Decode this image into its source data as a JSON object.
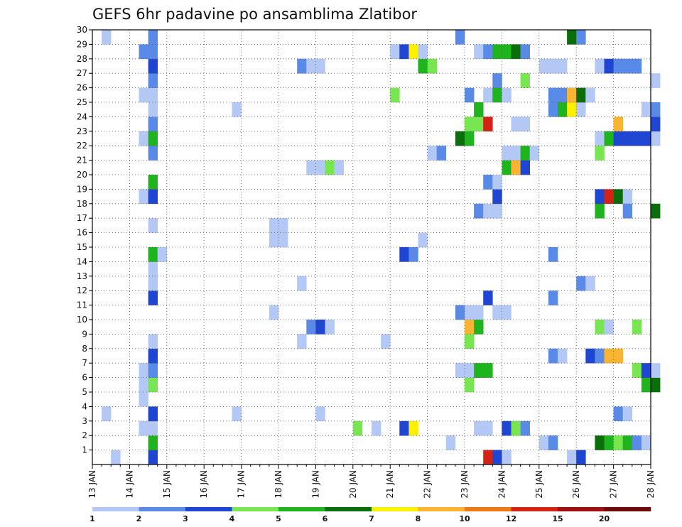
{
  "chart_data": {
    "type": "heatmap",
    "title": "GEFS 6hr padavine po ansamblima Zlatibor",
    "xlabel": "",
    "ylabel": "",
    "x_ticks": [
      "13 JAN",
      "14 JAN",
      "15 JAN",
      "16 JAN",
      "17 JAN",
      "18 JAN",
      "19 JAN",
      "20 JAN",
      "21 JAN",
      "22 JAN",
      "23 JAN",
      "24 JAN",
      "25 JAN",
      "26 JAN",
      "27 JAN",
      "28 JAN"
    ],
    "y_ticks": [
      1,
      2,
      3,
      4,
      5,
      6,
      7,
      8,
      9,
      10,
      11,
      12,
      13,
      14,
      15,
      16,
      17,
      18,
      19,
      20,
      21,
      22,
      23,
      24,
      25,
      26,
      27,
      28,
      29,
      30
    ],
    "xlim": [
      "13 JAN 00Z",
      "28 JAN 00Z"
    ],
    "ylim": [
      0,
      30
    ],
    "time_step_hours": 6,
    "grid": "dotted",
    "colorbar": {
      "labels": [
        "1",
        "2",
        "3",
        "4",
        "5",
        "6",
        "7",
        "8",
        "10",
        "12",
        "15",
        "20"
      ],
      "colors": [
        "#b4c8f5",
        "#5a8ae8",
        "#1e46d2",
        "#78e650",
        "#1eb41e",
        "#0a6e0a",
        "#fff000",
        "#fab432",
        "#f07814",
        "#d22314",
        "#a01010",
        "#6e0a0a"
      ]
    },
    "series": [
      {
        "member": 1,
        "cells": [
          [
            "13 JAN 12Z",
            1
          ],
          [
            "14 JAN 12Z",
            3
          ],
          [
            "23 JAN 12Z",
            10
          ],
          [
            "23 JAN 18Z",
            3
          ],
          [
            "24 JAN 00Z",
            1
          ],
          [
            "25 JAN 18Z",
            1
          ],
          [
            "26 JAN 00Z",
            3
          ]
        ]
      },
      {
        "member": 2,
        "cells": [
          [
            "14 JAN 12Z",
            5
          ],
          [
            "22 JAN 12Z",
            1
          ],
          [
            "25 JAN 00Z",
            1
          ],
          [
            "25 JAN 06Z",
            2
          ],
          [
            "26 JAN 12Z",
            6
          ],
          [
            "26 JAN 18Z",
            5
          ],
          [
            "27 JAN 00Z",
            4
          ],
          [
            "27 JAN 06Z",
            5
          ],
          [
            "27 JAN 12Z",
            2
          ],
          [
            "27 JAN 18Z",
            1
          ]
        ]
      },
      {
        "member": 3,
        "cells": [
          [
            "14 JAN 06Z",
            1
          ],
          [
            "14 JAN 12Z",
            1
          ],
          [
            "20 JAN 00Z",
            4
          ],
          [
            "20 JAN 12Z",
            1
          ],
          [
            "21 JAN 06Z",
            3
          ],
          [
            "21 JAN 12Z",
            7
          ],
          [
            "23 JAN 06Z",
            1
          ],
          [
            "23 JAN 12Z",
            1
          ],
          [
            "24 JAN 00Z",
            3
          ],
          [
            "24 JAN 06Z",
            4
          ],
          [
            "24 JAN 12Z",
            2
          ]
        ]
      },
      {
        "member": 4,
        "cells": [
          [
            "13 JAN 06Z",
            1
          ],
          [
            "14 JAN 12Z",
            3
          ],
          [
            "16 JAN 18Z",
            1
          ],
          [
            "19 JAN 00Z",
            1
          ],
          [
            "27 JAN 00Z",
            2
          ],
          [
            "27 JAN 06Z",
            1
          ]
        ]
      },
      {
        "member": 5,
        "cells": [
          [
            "14 JAN 06Z",
            1
          ]
        ]
      },
      {
        "member": 6,
        "cells": [
          [
            "14 JAN 06Z",
            1
          ],
          [
            "14 JAN 12Z",
            4
          ],
          [
            "23 JAN 00Z",
            4
          ],
          [
            "27 JAN 18Z",
            5
          ],
          [
            "28 JAN 00Z",
            6
          ]
        ]
      },
      {
        "member": 7,
        "cells": [
          [
            "14 JAN 06Z",
            1
          ],
          [
            "14 JAN 12Z",
            2
          ],
          [
            "22 JAN 18Z",
            1
          ],
          [
            "23 JAN 00Z",
            1
          ],
          [
            "23 JAN 06Z",
            5
          ],
          [
            "23 JAN 12Z",
            5
          ],
          [
            "27 JAN 12Z",
            4
          ],
          [
            "27 JAN 18Z",
            3
          ],
          [
            "28 JAN 00Z",
            1
          ]
        ]
      },
      {
        "member": 8,
        "cells": [
          [
            "14 JAN 12Z",
            3
          ],
          [
            "25 JAN 06Z",
            2
          ],
          [
            "25 JAN 12Z",
            1
          ],
          [
            "26 JAN 06Z",
            3
          ],
          [
            "26 JAN 12Z",
            2
          ],
          [
            "26 JAN 18Z",
            8
          ],
          [
            "27 JAN 00Z",
            8
          ]
        ]
      },
      {
        "member": 9,
        "cells": [
          [
            "14 JAN 12Z",
            1
          ],
          [
            "18 JAN 12Z",
            1
          ],
          [
            "20 JAN 18Z",
            1
          ],
          [
            "23 JAN 00Z",
            4
          ]
        ]
      },
      {
        "member": 10,
        "cells": [
          [
            "18 JAN 18Z",
            2
          ],
          [
            "19 JAN 00Z",
            3
          ],
          [
            "19 JAN 06Z",
            1
          ],
          [
            "23 JAN 00Z",
            8
          ],
          [
            "23 JAN 06Z",
            5
          ],
          [
            "26 JAN 12Z",
            4
          ],
          [
            "26 JAN 18Z",
            1
          ],
          [
            "27 JAN 12Z",
            4
          ]
        ]
      },
      {
        "member": 11,
        "cells": [
          [
            "17 JAN 18Z",
            1
          ],
          [
            "22 JAN 18Z",
            2
          ],
          [
            "23 JAN 00Z",
            1
          ],
          [
            "23 JAN 06Z",
            1
          ],
          [
            "23 JAN 18Z",
            1
          ],
          [
            "24 JAN 00Z",
            1
          ]
        ]
      },
      {
        "member": 12,
        "cells": [
          [
            "14 JAN 12Z",
            3
          ],
          [
            "23 JAN 12Z",
            3
          ],
          [
            "25 JAN 06Z",
            2
          ]
        ]
      },
      {
        "member": 13,
        "cells": [
          [
            "14 JAN 12Z",
            1
          ],
          [
            "18 JAN 12Z",
            1
          ],
          [
            "26 JAN 00Z",
            2
          ],
          [
            "26 JAN 06Z",
            1
          ]
        ]
      },
      {
        "member": 14,
        "cells": [
          [
            "14 JAN 12Z",
            1
          ]
        ]
      },
      {
        "member": 15,
        "cells": [
          [
            "14 JAN 12Z",
            5
          ],
          [
            "14 JAN 18Z",
            1
          ],
          [
            "21 JAN 06Z",
            3
          ],
          [
            "21 JAN 12Z",
            2
          ],
          [
            "25 JAN 06Z",
            2
          ]
        ]
      },
      {
        "member": 16,
        "cells": [
          [
            "17 JAN 18Z",
            1
          ],
          [
            "18 JAN 00Z",
            1
          ],
          [
            "21 JAN 18Z",
            1
          ]
        ]
      },
      {
        "member": 17,
        "cells": [
          [
            "14 JAN 12Z",
            1
          ],
          [
            "17 JAN 18Z",
            1
          ],
          [
            "18 JAN 00Z",
            1
          ]
        ]
      },
      {
        "member": 18,
        "cells": [
          [
            "23 JAN 06Z",
            2
          ],
          [
            "23 JAN 12Z",
            1
          ],
          [
            "23 JAN 18Z",
            1
          ],
          [
            "26 JAN 12Z",
            5
          ],
          [
            "27 JAN 06Z",
            2
          ],
          [
            "28 JAN 00Z",
            6
          ]
        ]
      },
      {
        "member": 19,
        "cells": [
          [
            "14 JAN 06Z",
            1
          ],
          [
            "14 JAN 12Z",
            3
          ],
          [
            "23 JAN 18Z",
            3
          ],
          [
            "26 JAN 12Z",
            3
          ],
          [
            "26 JAN 18Z",
            10
          ],
          [
            "27 JAN 00Z",
            6
          ],
          [
            "27 JAN 06Z",
            1
          ]
        ]
      },
      {
        "member": 20,
        "cells": [
          [
            "14 JAN 12Z",
            5
          ],
          [
            "23 JAN 12Z",
            2
          ],
          [
            "23 JAN 18Z",
            1
          ]
        ]
      },
      {
        "member": 21,
        "cells": [
          [
            "18 JAN 18Z",
            1
          ],
          [
            "19 JAN 00Z",
            1
          ],
          [
            "19 JAN 06Z",
            4
          ],
          [
            "19 JAN 12Z",
            1
          ],
          [
            "24 JAN 00Z",
            5
          ],
          [
            "24 JAN 06Z",
            8
          ],
          [
            "24 JAN 12Z",
            3
          ]
        ]
      },
      {
        "member": 22,
        "cells": [
          [
            "14 JAN 12Z",
            2
          ],
          [
            "22 JAN 00Z",
            1
          ],
          [
            "22 JAN 06Z",
            2
          ],
          [
            "24 JAN 00Z",
            1
          ],
          [
            "24 JAN 06Z",
            1
          ],
          [
            "24 JAN 12Z",
            5
          ],
          [
            "24 JAN 18Z",
            1
          ],
          [
            "26 JAN 12Z",
            4
          ]
        ]
      },
      {
        "member": 23,
        "cells": [
          [
            "14 JAN 06Z",
            1
          ],
          [
            "14 JAN 12Z",
            5
          ],
          [
            "22 JAN 18Z",
            6
          ],
          [
            "23 JAN 00Z",
            5
          ],
          [
            "26 JAN 12Z",
            1
          ],
          [
            "26 JAN 18Z",
            5
          ],
          [
            "27 JAN 00Z",
            3
          ],
          [
            "27 JAN 06Z",
            3
          ],
          [
            "27 JAN 12Z",
            3
          ],
          [
            "27 JAN 18Z",
            3
          ],
          [
            "28 JAN 00Z",
            1
          ]
        ]
      },
      {
        "member": 24,
        "cells": [
          [
            "14 JAN 12Z",
            2
          ],
          [
            "23 JAN 00Z",
            4
          ],
          [
            "23 JAN 06Z",
            4
          ],
          [
            "23 JAN 12Z",
            10
          ],
          [
            "24 JAN 06Z",
            1
          ],
          [
            "24 JAN 12Z",
            1
          ],
          [
            "27 JAN 00Z",
            8
          ],
          [
            "28 JAN 00Z",
            3
          ]
        ]
      },
      {
        "member": 25,
        "cells": [
          [
            "14 JAN 12Z",
            1
          ],
          [
            "16 JAN 18Z",
            1
          ],
          [
            "23 JAN 06Z",
            5
          ],
          [
            "25 JAN 06Z",
            2
          ],
          [
            "25 JAN 12Z",
            5
          ],
          [
            "25 JAN 18Z",
            7
          ],
          [
            "26 JAN 00Z",
            1
          ],
          [
            "27 JAN 18Z",
            1
          ],
          [
            "28 JAN 00Z",
            2
          ]
        ]
      },
      {
        "member": 26,
        "cells": [
          [
            "14 JAN 06Z",
            1
          ],
          [
            "14 JAN 12Z",
            1
          ],
          [
            "21 JAN 00Z",
            4
          ],
          [
            "23 JAN 00Z",
            2
          ],
          [
            "23 JAN 12Z",
            1
          ],
          [
            "23 JAN 18Z",
            5
          ],
          [
            "24 JAN 00Z",
            1
          ],
          [
            "25 JAN 06Z",
            2
          ],
          [
            "25 JAN 12Z",
            2
          ],
          [
            "25 JAN 18Z",
            8
          ],
          [
            "26 JAN 00Z",
            6
          ],
          [
            "26 JAN 06Z",
            1
          ]
        ]
      },
      {
        "member": 27,
        "cells": [
          [
            "14 JAN 12Z",
            2
          ],
          [
            "23 JAN 18Z",
            2
          ],
          [
            "24 JAN 12Z",
            4
          ],
          [
            "28 JAN 00Z",
            1
          ]
        ]
      },
      {
        "member": 28,
        "cells": [
          [
            "14 JAN 12Z",
            3
          ],
          [
            "18 JAN 12Z",
            2
          ],
          [
            "18 JAN 18Z",
            1
          ],
          [
            "19 JAN 00Z",
            1
          ],
          [
            "21 JAN 18Z",
            5
          ],
          [
            "22 JAN 00Z",
            4
          ],
          [
            "25 JAN 00Z",
            1
          ],
          [
            "25 JAN 06Z",
            1
          ],
          [
            "25 JAN 12Z",
            1
          ],
          [
            "26 JAN 12Z",
            1
          ],
          [
            "26 JAN 18Z",
            3
          ],
          [
            "27 JAN 00Z",
            2
          ],
          [
            "27 JAN 06Z",
            2
          ],
          [
            "27 JAN 12Z",
            2
          ]
        ]
      },
      {
        "member": 29,
        "cells": [
          [
            "14 JAN 06Z",
            2
          ],
          [
            "14 JAN 12Z",
            2
          ],
          [
            "21 JAN 00Z",
            1
          ],
          [
            "21 JAN 06Z",
            3
          ],
          [
            "21 JAN 12Z",
            7
          ],
          [
            "21 JAN 18Z",
            1
          ],
          [
            "23 JAN 06Z",
            1
          ],
          [
            "23 JAN 12Z",
            2
          ],
          [
            "23 JAN 18Z",
            5
          ],
          [
            "24 JAN 00Z",
            5
          ],
          [
            "24 JAN 06Z",
            6
          ],
          [
            "24 JAN 12Z",
            2
          ]
        ]
      },
      {
        "member": 30,
        "cells": [
          [
            "13 JAN 06Z",
            1
          ],
          [
            "14 JAN 12Z",
            2
          ],
          [
            "22 JAN 18Z",
            2
          ],
          [
            "25 JAN 18Z",
            6
          ],
          [
            "26 JAN 00Z",
            2
          ]
        ]
      }
    ]
  }
}
